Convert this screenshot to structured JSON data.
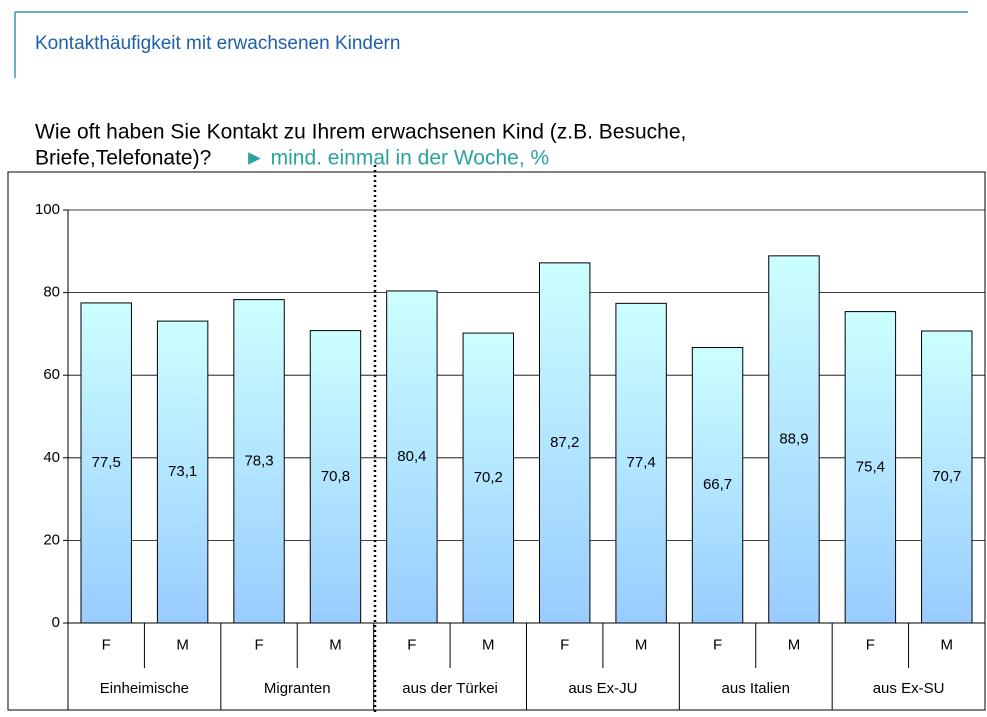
{
  "header": {
    "title": "Kontakthäufigkeit mit erwachsenen Kindern"
  },
  "question": [
    "Wie oft haben Sie Kontakt zu Ihrem erwachsenen Kind (z.B. Besuche,",
    "Briefe,Telefonate)?"
  ],
  "chart_data": {
    "type": "bar",
    "subtitle": "► mind. einmal in der Woche, %",
    "categories": [
      "F",
      "M",
      "F",
      "M",
      "F",
      "M",
      "F",
      "M",
      "F",
      "M",
      "F",
      "M"
    ],
    "groups": [
      "Einheimische",
      "Migranten",
      "aus der Türkei",
      "aus Ex-JU",
      "aus Italien",
      "aus Ex-SU"
    ],
    "values": [
      77.5,
      73.1,
      78.3,
      70.8,
      80.4,
      70.2,
      87.2,
      77.4,
      66.7,
      88.9,
      75.4,
      70.7
    ],
    "value_labels": [
      "77,5",
      "73,1",
      "78,3",
      "70,8",
      "80,4",
      "70,2",
      "87,2",
      "77,4",
      "66,7",
      "88,9",
      "75,4",
      "70,7"
    ],
    "ylim": [
      0,
      100
    ],
    "yticks": [
      0,
      20,
      40,
      60,
      80,
      100
    ],
    "grid": true,
    "color": [
      "#ccffff",
      "#99ccff"
    ]
  }
}
